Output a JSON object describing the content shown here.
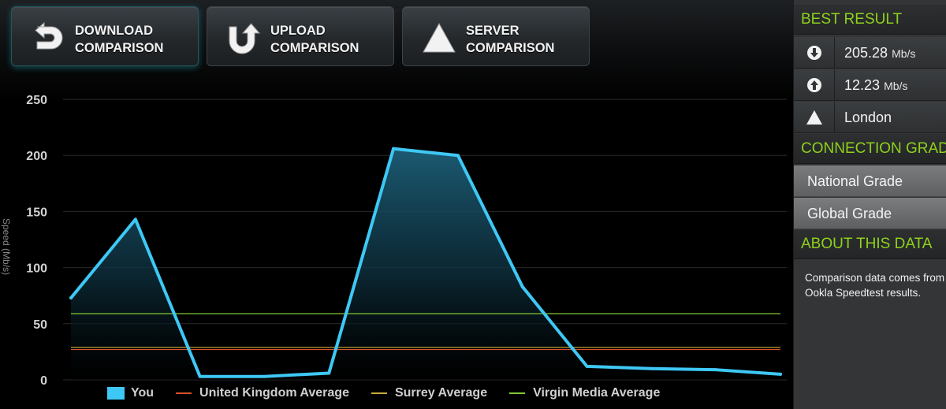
{
  "tabs": [
    {
      "line1": "DOWNLOAD",
      "line2": "COMPARISON",
      "icon": "download-icon",
      "active": true
    },
    {
      "line1": "UPLOAD",
      "line2": "COMPARISON",
      "icon": "upload-icon",
      "active": false
    },
    {
      "line1": "SERVER",
      "line2": "COMPARISON",
      "icon": "server-triangle-icon",
      "active": false
    }
  ],
  "chart_data": {
    "type": "area",
    "ylabel": "Speed (Mb/s)",
    "ylim": [
      0,
      250
    ],
    "yticks": [
      0,
      50,
      100,
      150,
      200,
      250
    ],
    "grid": true,
    "legend_placement": "bottom",
    "series": [
      {
        "name": "You",
        "kind": "area",
        "color": "#3ec8f5",
        "values": [
          73,
          143,
          3,
          3,
          6,
          206,
          200,
          83,
          12,
          10,
          9,
          5
        ]
      },
      {
        "name": "United Kingdom Average",
        "kind": "line",
        "color": "#d9502a",
        "value": 27
      },
      {
        "name": "Surrey Average",
        "kind": "line",
        "color": "#c8a83a",
        "value": 29
      },
      {
        "name": "Virgin Media Average",
        "kind": "line",
        "color": "#7cc832",
        "value": 59
      }
    ]
  },
  "sidebar": {
    "best_result": {
      "header": "BEST RESULT",
      "download": {
        "value": "205.28",
        "unit": "Mb/s",
        "icon": "download-arrow-icon"
      },
      "upload": {
        "value": "12.23",
        "unit": "Mb/s",
        "icon": "upload-arrow-icon"
      },
      "server": {
        "value": "London",
        "icon": "server-triangle-icon"
      }
    },
    "connection_grade": {
      "header": "CONNECTION GRADE",
      "national": "National Grade",
      "global": "Global Grade"
    },
    "about": {
      "header": "ABOUT THIS DATA",
      "line1": "Comparison data comes from",
      "line2": "Ookla Speedtest results."
    }
  }
}
